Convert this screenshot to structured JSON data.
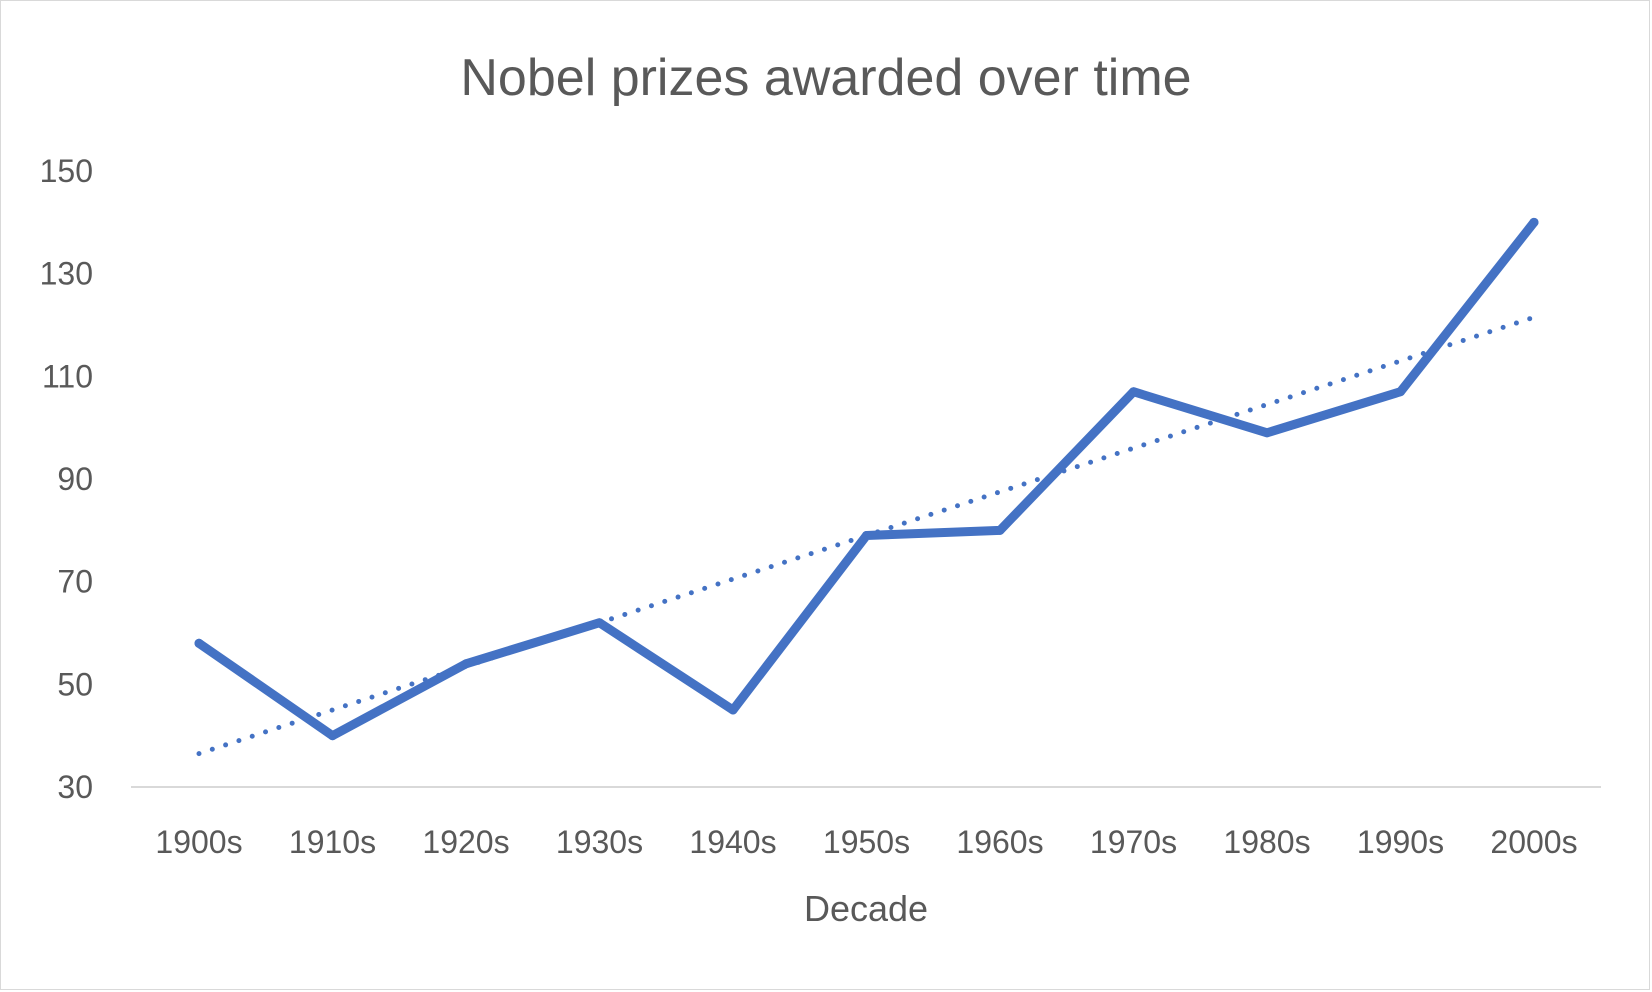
{
  "chart_data": {
    "type": "line",
    "title": "Nobel prizes awarded over time",
    "xlabel": "Decade",
    "ylabel": "",
    "categories": [
      "1900s",
      "1910s",
      "1920s",
      "1930s",
      "1940s",
      "1950s",
      "1960s",
      "1970s",
      "1980s",
      "1990s",
      "2000s"
    ],
    "series": [
      {
        "values": [
          58,
          40,
          54,
          62,
          45,
          79,
          80,
          107,
          99,
          107,
          140
        ],
        "color": "#4472C4"
      }
    ],
    "trendline": {
      "type": "linear",
      "style": "dotted",
      "color": "#4472C4",
      "start": 36.5,
      "end": 121.5
    },
    "ylim": [
      30,
      150
    ],
    "yticks": [
      30,
      50,
      70,
      90,
      110,
      130,
      150
    ],
    "grid": false,
    "legend": "none"
  }
}
